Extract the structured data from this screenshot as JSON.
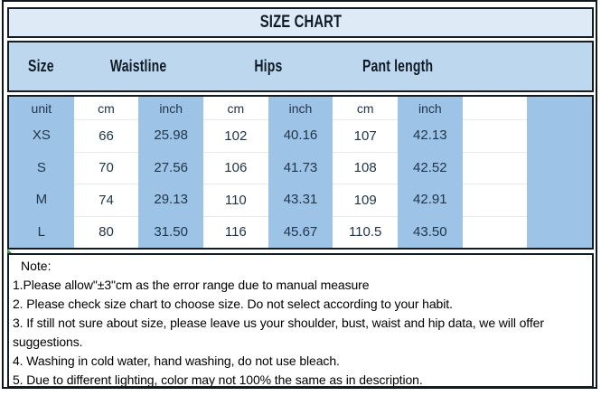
{
  "chart_data": {
    "type": "table",
    "title": "SIZE CHART",
    "column_groups": [
      "Size",
      "Waistline",
      "Hips",
      "Pant length"
    ],
    "unit_header": [
      "unit",
      "cm",
      "inch",
      "cm",
      "inch",
      "cm",
      "inch"
    ],
    "rows": [
      [
        "XS",
        "66",
        "25.98",
        "102",
        "40.16",
        "107",
        "42.13"
      ],
      [
        "S",
        "70",
        "27.56",
        "106",
        "41.73",
        "108",
        "42.52"
      ],
      [
        "M",
        "74",
        "29.13",
        "110",
        "43.31",
        "109",
        "42.91"
      ],
      [
        "L",
        "80",
        "31.50",
        "116",
        "45.67",
        "110.5",
        "43.50"
      ]
    ]
  },
  "notes": {
    "heading": "Note:",
    "lines": [
      "1.Please allow\"±3\"cm as the error range due to manual measure",
      "2. Please check size chart to choose size. Do not select according to your habit.",
      "3. If still not sure about size, please leave us your shoulder, bust, waist and hip data, we will offer",
      "suggestions.",
      "4. Washing in cold water, hand washing, do not use bleach.",
      "5. Due to different lighting, color may not 100% the same as in description."
    ]
  },
  "colors": {
    "title_bg": "#deebf7",
    "header_bg": "#bdd7ee",
    "column_blue": "#9dc3e6",
    "border_dark": "#131d28",
    "table_text": "#21354b",
    "note_text": "#000000"
  }
}
